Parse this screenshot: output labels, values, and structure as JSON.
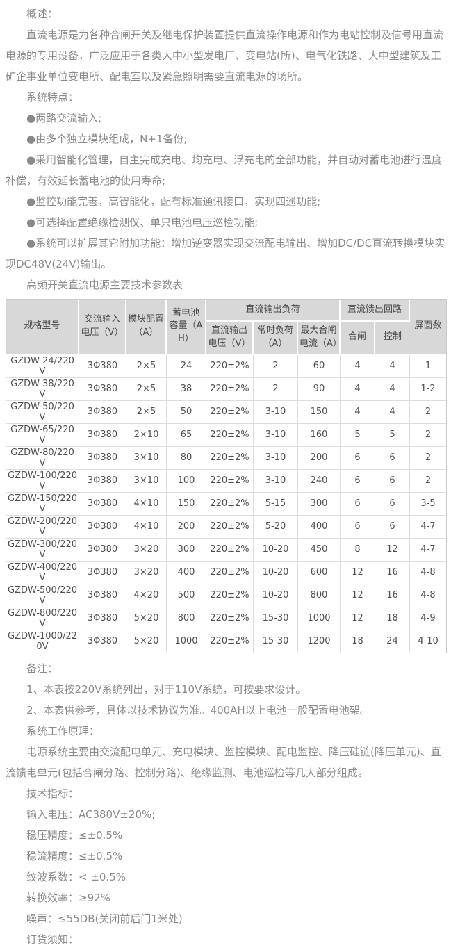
{
  "content": {
    "overview_title": "概述：",
    "overview_body": "直流电源是为各种合闸开关及继电保护装置提供直流操作电源和作为电站控制及信号用直流电源的专用设备，广泛应用于各类大中小型发电厂、变电站(所)、电气化铁路、大中型建筑及工矿企事业单位变电所、配电室以及紧急照明需要直流电源的场所。",
    "features_title": "系统特点：",
    "features": [
      "●两路交流输入;",
      "●由多个独立模块组成，N+1备份;",
      "●采用智能化管理，自主完成充电、均充电、浮充电的全部功能，并自动对蓄电池进行温度补偿，有效延长蓄电池的使用寿命;",
      "●监控功能完善，高智能化，配有标准通讯接口，实现四遥功能;",
      "●可选择配置绝缘检测仪、单只电池电压巡检功能;",
      "●系统可以扩展其它附加功能：增加逆变器实现交流配电输出、增加DC/DC直流转换模块实现DC48V(24V)输出。"
    ],
    "table_title": "高频开关直流电源主要技术参数表",
    "notes_title": "备注：",
    "notes": [
      "1、本表按220V系统列出，对于110V系统，可按要求设计。",
      "2、本表供参考，具体以技术协议为准。400AH以上电池一般配置电池架。"
    ],
    "principle_title": "系统工作原理：",
    "principle_body": "电源系统主要由交流配电单元、充电模块、监控模块、配电监控、降压硅链(降压单元)、直流馈电单元(包括合闸分路、控制分路)、绝缘监测、电池巡检等几大部分组成。",
    "specs_title": "技术指标：",
    "specs": [
      "输入电压：AC380V±20%;",
      "稳压精度：≤±0.5%",
      "稳流精度：≤±0.5%",
      "纹波系数：< ±0.5%",
      "转换效率：≥92%",
      "噪声：≤55DB(关闭前后门1米处)"
    ],
    "order_title": "订货须知："
  },
  "table": {
    "headers": {
      "model": "规格型号",
      "ac_input_voltage": "交流输入电压（V）",
      "module_config": "模块配置（A）",
      "battery_capacity": "蓄电池容量（AH）",
      "dc_output_load_group": "直流输出负荷",
      "dc_output_voltage": "直流输出电压（V）",
      "normal_load": "常时负荷（A）",
      "max_closing_current": "最大合闸电流（A）",
      "dc_feed_circuit_group": "直流馈出回路",
      "closing": "合闸",
      "control": "控制",
      "panel_count": "屏面数"
    },
    "rows": [
      [
        "GZDW-24/220V",
        "3Φ380",
        "2×5",
        "24",
        "220±2%",
        "2",
        "60",
        "4",
        "4",
        "1"
      ],
      [
        "GZDW-38/220V",
        "3Φ380",
        "2×5",
        "38",
        "220±2%",
        "2",
        "90",
        "4",
        "4",
        "1-2"
      ],
      [
        "GZDW-50/220V",
        "3Φ380",
        "2×5",
        "50",
        "220±2%",
        "3-10",
        "150",
        "4",
        "4",
        "2"
      ],
      [
        "GZDW-65/220V",
        "3Φ380",
        "2×10",
        "65",
        "220±2%",
        "3-10",
        "160",
        "5",
        "5",
        "2"
      ],
      [
        "GZDW-80/220V",
        "3Φ380",
        "3×10",
        "80",
        "220±2%",
        "3-10",
        "200",
        "6",
        "6",
        "2"
      ],
      [
        "GZDW-100/220V",
        "3Φ380",
        "3×10",
        "100",
        "220±2%",
        "3-10",
        "240",
        "6",
        "6",
        "2"
      ],
      [
        "GZDW-150/220V",
        "3Φ380",
        "4×10",
        "150",
        "220±2%",
        "5-15",
        "300",
        "6",
        "6",
        "3-5"
      ],
      [
        "GZDW-200/220V",
        "3Φ380",
        "4×10",
        "200",
        "220±2%",
        "5-20",
        "400",
        "6",
        "6",
        "4-7"
      ],
      [
        "GZDW-300/220V",
        "3Φ380",
        "3×20",
        "300",
        "220±2%",
        "10-20",
        "450",
        "8",
        "12",
        "4-7"
      ],
      [
        "GZDW-400/220V",
        "3Φ380",
        "3×20",
        "400",
        "220±2%",
        "10-20",
        "600",
        "12",
        "16",
        "4-8"
      ],
      [
        "GZDW-500/220V",
        "3Φ380",
        "4×20",
        "500",
        "220±2%",
        "10-20",
        "800",
        "12",
        "16",
        "4-8"
      ],
      [
        "GZDW-800/220V",
        "3Φ380",
        "5×20",
        "800",
        "220±2%",
        "15-30",
        "1000",
        "12",
        "18",
        "4-9"
      ],
      [
        "GZDW-1000/220V",
        "3Φ380",
        "5×20",
        "1000",
        "220±2%",
        "15-30",
        "1200",
        "18",
        "24",
        "4-10"
      ]
    ]
  },
  "colors": {
    "body_text": "#8a8a8a",
    "table_text": "#4f4f4f",
    "table_header_bg": "#d8d8d8",
    "table_border": "#c9c9c9",
    "page_bg": "#ffffff"
  }
}
